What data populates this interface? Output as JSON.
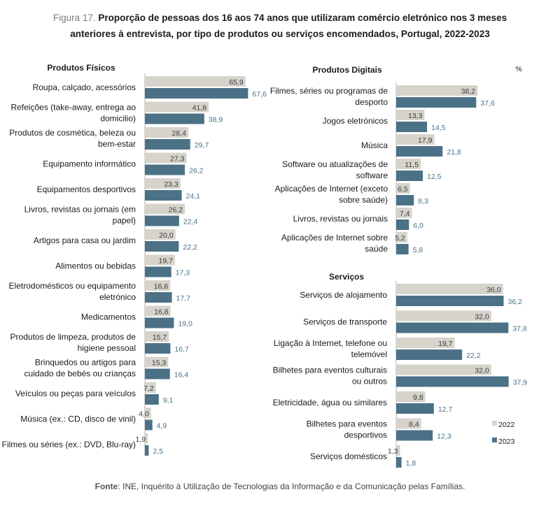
{
  "figure": {
    "number": "Figura 17.",
    "title_line1": "Proporção de pessoas dos 16 aos 74 anos que utilizaram comércio eletrónico nos 3 meses",
    "title_line2": "anteriores à entrevista, por tipo de produtos ou serviços encomendados, Portugal, 2022-2023"
  },
  "footer": {
    "source_label": "Fonte",
    "source_text": ": INE, Inquérito à Utilização de Tecnologias da Informação e da Comunicação pelas Famílias."
  },
  "colors": {
    "y2022": "#d6d3cb",
    "y2023": "#4b7186",
    "axis": "#b0b0b0",
    "label2023": "#4b7186"
  },
  "chart_data": [
    {
      "type": "bar",
      "orientation": "horizontal",
      "title": "Produtos Físicos",
      "series_names": [
        "2022",
        "2023"
      ],
      "categories": [
        [
          "Roupa, calçado, acessórios"
        ],
        [
          "Refeições (take-away, entrega ao",
          "domicilio)"
        ],
        [
          "Produtos de cosmética, beleza ou",
          "bem-estar"
        ],
        [
          "Equipamento informático"
        ],
        [
          "Equipamentos desportivos"
        ],
        [
          "Livros, revistas ou jornais (em",
          "papel)"
        ],
        [
          "Artigos para casa ou jardim"
        ],
        [
          "Alimentos ou bebidas"
        ],
        [
          "Eletrodomésticos ou equipamento",
          "eletrónico"
        ],
        [
          "Medicamentos"
        ],
        [
          "Produtos de limpeza, produtos de",
          "higiene pessoal"
        ],
        [
          "Brinquedos ou artigos para",
          "cuidado de bebés ou crianças"
        ],
        [
          "Veículos ou peças para veículos"
        ],
        [
          "Música (ex.: CD, disco de vinil)"
        ],
        [
          "Filmes ou séries (ex.: DVD, Blu-ray)"
        ]
      ],
      "values_2022": [
        "65,9",
        "41,8",
        "28,4",
        "27,3",
        "23,3",
        "26,2",
        "20,0",
        "19,7",
        "16,6",
        "16,8",
        "15,7",
        "15,3",
        "7,2",
        "4,0",
        "1,9"
      ],
      "values_2023": [
        "67,6",
        "38,9",
        "29,7",
        "26,2",
        "24,1",
        "22,4",
        "22,2",
        "17,3",
        "17,7",
        "19,0",
        "16,7",
        "16,4",
        "9,1",
        "4,9",
        "2,5"
      ]
    },
    {
      "type": "bar",
      "orientation": "horizontal",
      "title": "Produtos Digitais",
      "unit": "%",
      "series_names": [
        "2022",
        "2023"
      ],
      "categories": [
        [
          "Filmes, séries ou programas de",
          "desporto"
        ],
        [
          "Jogos eletrónicos"
        ],
        [
          "Música"
        ],
        [
          "Software ou atualizações de",
          "software"
        ],
        [
          "Aplicações de Internet (exceto",
          "sobre saúde)"
        ],
        [
          "Livros, revistas ou jornais"
        ],
        [
          "Aplicações de Internet sobre",
          "saúde"
        ]
      ],
      "values_2022": [
        "38,2",
        "13,3",
        "17,9",
        "11,5",
        "6,5",
        "7,4",
        "5,2"
      ],
      "values_2023": [
        "37,6",
        "14,5",
        "21,8",
        "12,5",
        "8,3",
        "6,0",
        "5,8"
      ]
    },
    {
      "type": "bar",
      "orientation": "horizontal",
      "title": "Serviços",
      "series_names": [
        "2022",
        "2023"
      ],
      "legend": [
        "2022",
        "2023"
      ],
      "legend_position": "bottom-right",
      "categories": [
        [
          "Serviços de alojamento"
        ],
        [
          "Serviços de transporte"
        ],
        [
          "Ligação à Internet, telefone ou",
          "telemóvel"
        ],
        [
          "Bilhetes para eventos culturais",
          "ou outros"
        ],
        [
          "Eletricidade, água ou similares"
        ],
        [
          "Bilhetes para eventos",
          "desportivos"
        ],
        [
          "Serviços domésticos"
        ]
      ],
      "values_2022": [
        "36,0",
        "32,0",
        "19,7",
        "32,0",
        "9,8",
        "8,4",
        "1,3"
      ],
      "values_2023": [
        "36,2",
        "37,8",
        "22,2",
        "37,9",
        "12,7",
        "12,3",
        "1,8"
      ]
    }
  ]
}
